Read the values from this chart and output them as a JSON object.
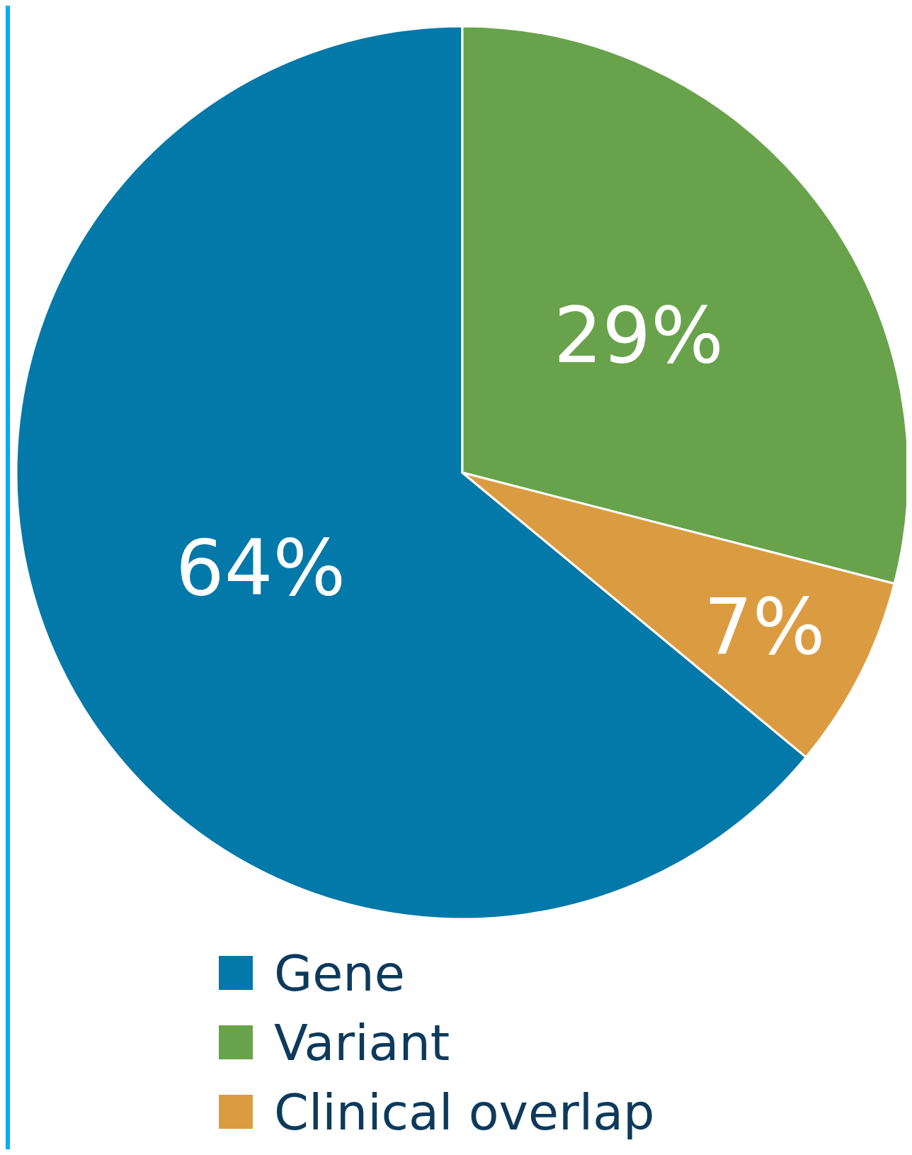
{
  "chart_data": {
    "type": "pie",
    "categories": [
      "Gene",
      "Variant",
      "Clinical overlap"
    ],
    "values": [
      64,
      29,
      7
    ],
    "colors": [
      "#0279a8",
      "#68a34b",
      "#db9c41"
    ],
    "value_labels": [
      "64%",
      "29%",
      "7%"
    ],
    "legend": "bottom"
  }
}
